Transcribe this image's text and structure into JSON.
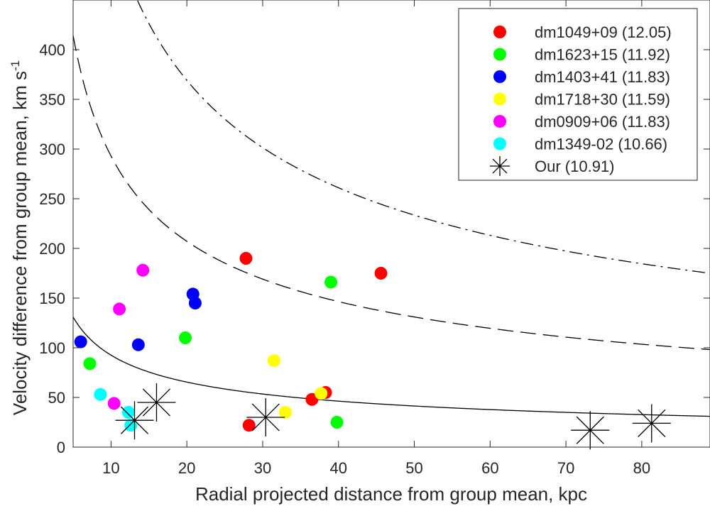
{
  "chart_data": {
    "type": "scatter",
    "xlabel": "Radial projected distance from group mean, kpc",
    "ylabel": "Velocity difference from group mean, km s",
    "ylabel_superscript": "-1",
    "xlim": [
      5,
      89
    ],
    "ylim": [
      0,
      450
    ],
    "xticks": [
      10,
      20,
      30,
      40,
      50,
      60,
      70,
      80
    ],
    "yticks": [
      0,
      50,
      100,
      150,
      200,
      250,
      300,
      350,
      400
    ],
    "grid": false,
    "legend_position": "top-right",
    "series": [
      {
        "name": "dm1049+09 (12.05)",
        "color": "#ff0000",
        "marker": "circle",
        "points": [
          [
            27.8,
            190
          ],
          [
            45.6,
            175
          ],
          [
            38.3,
            55
          ],
          [
            36.5,
            48
          ],
          [
            28.2,
            22
          ]
        ]
      },
      {
        "name": "dm1623+15 (11.92)",
        "color": "#00ff00",
        "marker": "circle",
        "points": [
          [
            39.0,
            166
          ],
          [
            19.8,
            110
          ],
          [
            7.2,
            84
          ],
          [
            39.8,
            25
          ]
        ]
      },
      {
        "name": "dm1403+41 (11.83)",
        "color": "#0000ff",
        "marker": "circle",
        "points": [
          [
            20.8,
            154
          ],
          [
            21.1,
            145
          ],
          [
            6.0,
            106
          ],
          [
            13.6,
            103
          ]
        ]
      },
      {
        "name": "dm1718+30 (11.59)",
        "color": "#ffff00",
        "marker": "circle",
        "points": [
          [
            31.5,
            87
          ],
          [
            37.7,
            54
          ],
          [
            33.0,
            35
          ]
        ]
      },
      {
        "name": "dm0909+06 (11.83)",
        "color": "#ff00ff",
        "marker": "circle",
        "points": [
          [
            14.2,
            178
          ],
          [
            11.1,
            139
          ],
          [
            10.4,
            44
          ]
        ]
      },
      {
        "name": "dm1349-02 (10.66)",
        "color": "#00ffff",
        "marker": "circle",
        "points": [
          [
            8.6,
            53
          ],
          [
            12.3,
            35
          ],
          [
            12.6,
            22
          ]
        ]
      },
      {
        "name": "Our (10.91)",
        "color": "#000000",
        "marker": "asterisk",
        "points": [
          [
            16.0,
            45
          ],
          [
            13.1,
            27
          ],
          [
            30.4,
            30
          ],
          [
            73.2,
            17
          ],
          [
            81.3,
            24
          ]
        ]
      }
    ],
    "curves": [
      {
        "style": "solid",
        "v_at_5kpc": 131,
        "v_at_89kpc": 31
      },
      {
        "style": "dashed",
        "v_at_5kpc": 415,
        "v_at_89kpc": 98
      },
      {
        "style": "dashdot",
        "v_at_13.5kpc": 450,
        "v_at_89kpc": 175
      }
    ]
  }
}
